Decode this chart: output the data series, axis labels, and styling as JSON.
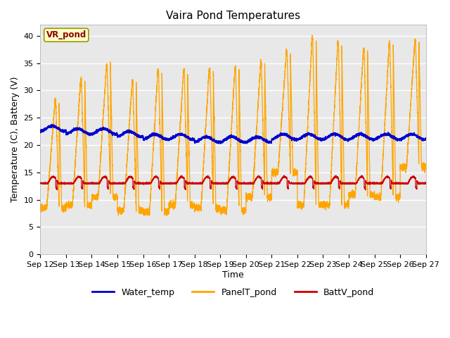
{
  "title": "Vaira Pond Temperatures",
  "xlabel": "Time",
  "ylabel": "Temperature (C), Battery (V)",
  "annotation": "VR_pond",
  "ylim": [
    0,
    42
  ],
  "yticks": [
    0,
    5,
    10,
    15,
    20,
    25,
    30,
    35,
    40
  ],
  "x_tick_labels": [
    "Sep 12",
    "Sep 13",
    "Sep 14",
    "Sep 15",
    "Sep 16",
    "Sep 17",
    "Sep 18",
    "Sep 19",
    "Sep 20",
    "Sep 21",
    "Sep 22",
    "Sep 23",
    "Sep 24",
    "Sep 25",
    "Sep 26",
    "Sep 27"
  ],
  "water_color": "#0000cc",
  "panel_color": "#ffa500",
  "batt_color": "#cc0000",
  "bg_color": "#e8e8e8",
  "fig_color": "#ffffff",
  "legend_labels": [
    "Water_temp",
    "PanelT_pond",
    "BattV_pond"
  ],
  "title_fontsize": 11,
  "axis_fontsize": 9,
  "tick_fontsize": 8,
  "legend_fontsize": 9
}
